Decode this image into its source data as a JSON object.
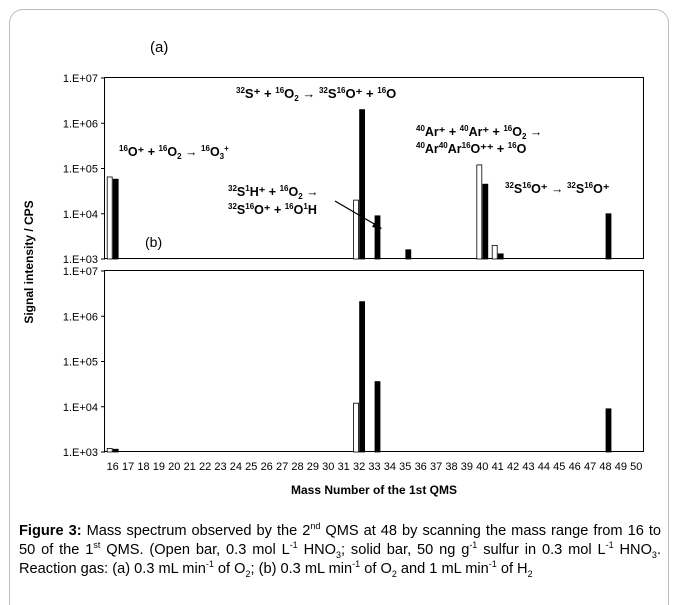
{
  "chart_data": [
    {
      "panel": "(a)",
      "type": "bar",
      "yscale": "log",
      "ylim": [
        1000,
        10000000
      ],
      "ytick_labels": [
        "1.E+03",
        "1.E+04",
        "1.E+05",
        "1.E+06",
        "1.E+07"
      ],
      "series": [
        {
          "name": "Open bar, 0.3 mol L-1 HNO3",
          "fill": "open",
          "points": [
            {
              "x": 16,
              "y": 65000
            },
            {
              "x": 32,
              "y": 20000
            },
            {
              "x": 40,
              "y": 120000
            },
            {
              "x": 41,
              "y": 2000
            }
          ]
        },
        {
          "name": "Solid bar, 50 ng g-1 sulfur in 0.3 mol L-1 HNO3",
          "fill": "solid",
          "points": [
            {
              "x": 16,
              "y": 58000
            },
            {
              "x": 32,
              "y": 2000000
            },
            {
              "x": 33,
              "y": 9000
            },
            {
              "x": 35,
              "y": 1600
            },
            {
              "x": 40,
              "y": 45000
            },
            {
              "x": 41,
              "y": 1300
            },
            {
              "x": 48,
              "y": 10000
            }
          ]
        }
      ]
    },
    {
      "panel": "(b)",
      "type": "bar",
      "yscale": "log",
      "ylim": [
        1000,
        10000000
      ],
      "ytick_labels": [
        "1.E+03",
        "1.E+04",
        "1.E+05",
        "1.E+06",
        "1.E+07"
      ],
      "series": [
        {
          "name": "Open bar, 0.3 mol L-1 HNO3",
          "fill": "open",
          "points": [
            {
              "x": 16,
              "y": 1200
            },
            {
              "x": 32,
              "y": 12000
            }
          ]
        },
        {
          "name": "Solid bar, 50 ng g-1 sulfur in 0.3 mol L-1 HNO3",
          "fill": "solid",
          "points": [
            {
              "x": 16,
              "y": 1150
            },
            {
              "x": 32,
              "y": 2100000
            },
            {
              "x": 33,
              "y": 36000
            },
            {
              "x": 48,
              "y": 9000
            }
          ]
        }
      ]
    }
  ],
  "axes": {
    "xlabel": "Mass Number of the 1st QMS",
    "ylabel": "Signal intensity / CPS",
    "xticks": [
      16,
      17,
      18,
      19,
      20,
      21,
      22,
      23,
      24,
      25,
      26,
      27,
      28,
      29,
      30,
      31,
      32,
      33,
      34,
      35,
      36,
      37,
      38,
      39,
      40,
      41,
      42,
      43,
      44,
      45,
      46,
      47,
      48,
      49,
      50
    ]
  },
  "panel_labels": {
    "a": "(a)",
    "b": "(b)"
  },
  "annotations": {
    "o3": "16O+ + 16O2 → 16O3+",
    "s32": "32S+ + 16O2 → 32S16O+ + 16O",
    "sh_line1": "32S1H+ + 16O2 →",
    "sh_line2": "32S16O+ + 16O1H",
    "ar_line1": "40Ar+ + 40Ar+ + 16O2 →",
    "ar_line2": "40Ar40Ar16O++ + 16O",
    "so48": "32S16O+ → 32S16O+"
  },
  "caption": {
    "label": "Figure 3:",
    "text": "Mass spectrum observed by the 2nd QMS at 48 by scanning the mass range from 16 to 50 of the 1st QMS. (Open bar, 0.3 mol L-1 HNO3; solid bar, 50 ng g-1 sulfur in 0.3 mol L-1 HNO3. Reaction gas: (a) 0.3 mL min-1 of O2; (b) 0.3 mL min-1 of O2 and 1 mL min-1 of H2"
  },
  "colors": {
    "solid_bar": "#000000",
    "open_bar_fill": "#ffffff",
    "open_bar_stroke": "#000000",
    "frame": "#bdbdbd"
  }
}
